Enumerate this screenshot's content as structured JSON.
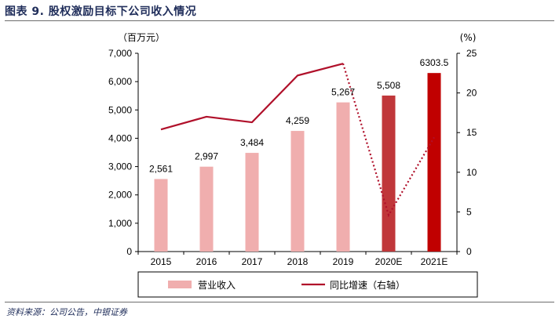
{
  "title": "图表 9. 股权激励目标下公司收入情况",
  "source": "资料来源：公司公告，中银证券",
  "colors": {
    "title": "#1f2d5a",
    "bar_actual": "#f0aeae",
    "bar_2020E": "#c0373a",
    "bar_2021E": "#c00000",
    "line": "#b0102a"
  },
  "chart_data": {
    "type": "bar+line",
    "categories": [
      "2015",
      "2016",
      "2017",
      "2018",
      "2019",
      "2020E",
      "2021E"
    ],
    "series": [
      {
        "name": "营业收入",
        "type": "bar",
        "axis": "left",
        "values": [
          2561,
          2997,
          3484,
          4259,
          5267,
          5508,
          6303.5
        ],
        "labels": [
          "2,561",
          "2,997",
          "3,484",
          "4,259",
          "5,267",
          "5,508",
          "6303.5"
        ]
      },
      {
        "name": "同比增速（右轴）",
        "type": "line",
        "axis": "right",
        "values": [
          15.4,
          17.0,
          16.3,
          22.2,
          23.7,
          4.6,
          14.4
        ],
        "dotted_from_index": 4
      }
    ],
    "y_left": {
      "unit": "（百万元）",
      "ylim": [
        0,
        7000
      ],
      "ticks": [
        "0",
        "1,000",
        "2,000",
        "3,000",
        "4,000",
        "5,000",
        "6,000",
        "7,000"
      ]
    },
    "y_right": {
      "unit": "(%)",
      "ylim": [
        0,
        25
      ],
      "ticks": [
        "0",
        "5",
        "10",
        "15",
        "20",
        "25"
      ]
    },
    "grid": false,
    "legend": "bottom"
  }
}
